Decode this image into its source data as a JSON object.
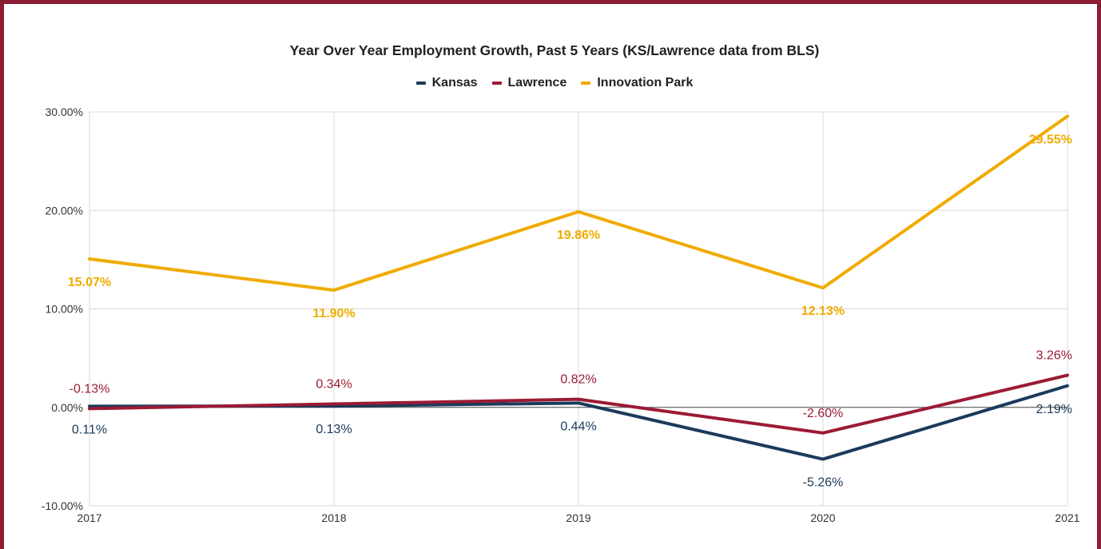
{
  "chart_data": {
    "type": "line",
    "title": "Year Over Year Employment Growth, Past 5 Years (KS/Lawrence data from BLS)",
    "xlabel": "",
    "ylabel": "",
    "categories": [
      "2017",
      "2018",
      "2019",
      "2020",
      "2021"
    ],
    "ylim": [
      -10,
      30
    ],
    "yticks": [
      -10,
      0,
      10,
      20,
      30
    ],
    "ytick_labels": [
      "-10.00%",
      "0.00%",
      "10.00%",
      "20.00%",
      "30.00%"
    ],
    "grid": true,
    "legend_position": "top",
    "series": [
      {
        "name": "Kansas",
        "color": "#1b3a5c",
        "values": [
          0.11,
          0.13,
          0.44,
          -5.26,
          2.19
        ],
        "labels": [
          "0.11%",
          "0.13%",
          "0.44%",
          "-5.26%",
          "2.19%"
        ],
        "label_bold": false,
        "label_position": "below"
      },
      {
        "name": "Lawrence",
        "color": "#9b1b34",
        "values": [
          -0.13,
          0.34,
          0.82,
          -2.6,
          3.26
        ],
        "labels": [
          "-0.13%",
          "0.34%",
          "0.82%",
          "-2.60%",
          "3.26%"
        ],
        "label_bold": false,
        "label_position": "above"
      },
      {
        "name": "Innovation Park",
        "color": "#f0ab00",
        "values": [
          15.07,
          11.9,
          19.86,
          12.13,
          29.55
        ],
        "labels": [
          "15.07%",
          "11.90%",
          "19.86%",
          "12.13%",
          "29.55%"
        ],
        "label_bold": true,
        "label_position": "below"
      }
    ]
  },
  "colors": {
    "frame": "#8c1d33",
    "grid": "#d9d9d9",
    "zero_line": "#444444"
  }
}
